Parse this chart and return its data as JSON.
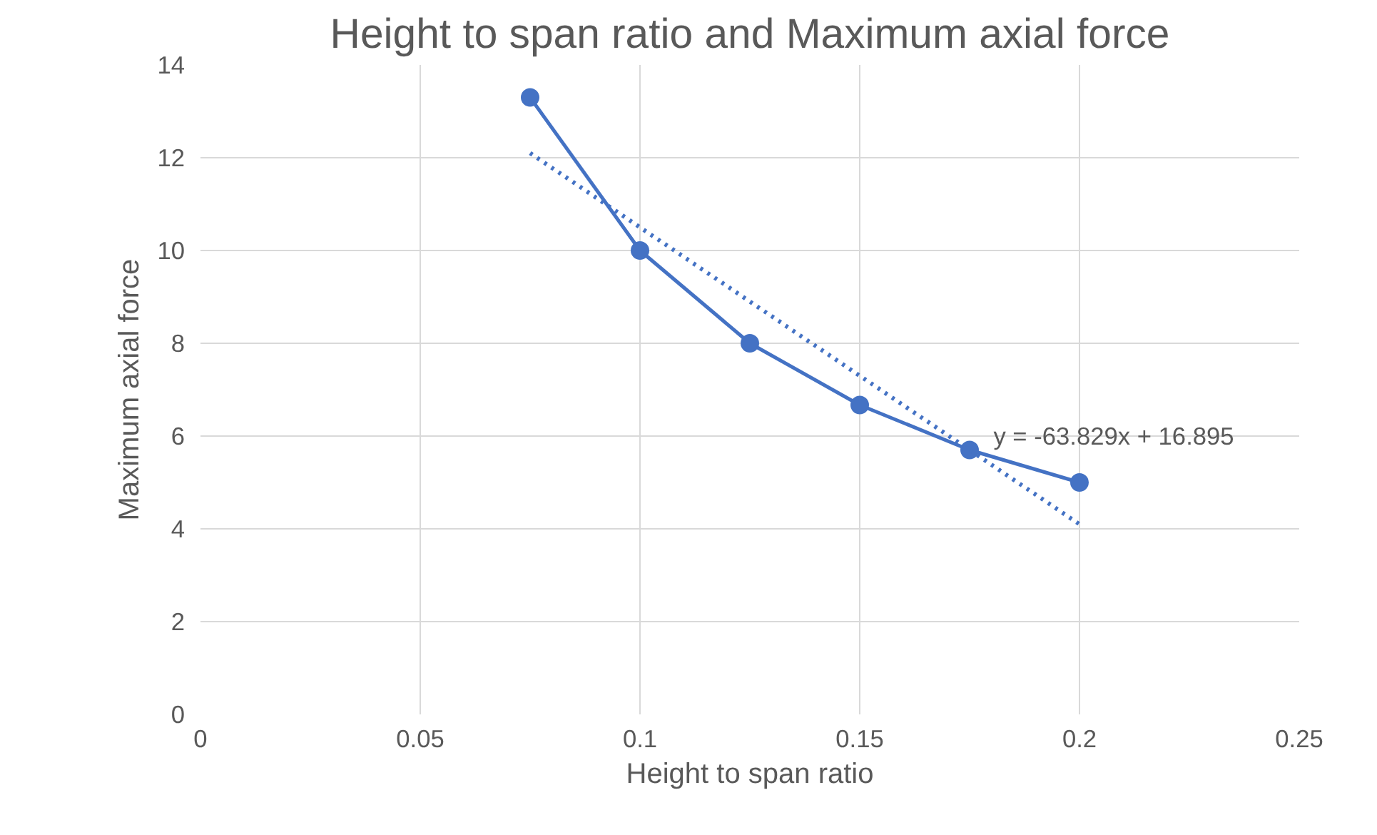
{
  "chart_data": {
    "type": "line",
    "title": "Height to span ratio and Maximum axial force",
    "xlabel": "Height to span ratio",
    "ylabel": "Maximum axial force",
    "x": [
      0.075,
      0.1,
      0.125,
      0.15,
      0.175,
      0.2
    ],
    "series": [
      {
        "color": "#4472c4",
        "values": [
          13.3,
          10,
          8,
          6.67,
          5.7,
          5
        ],
        "marker": "circle",
        "line_style": "solid"
      },
      {
        "type": "line",
        "color": "#4472c4",
        "x": [
          0.075,
          0.2
        ],
        "values": [
          12.1,
          4.1
        ],
        "marker": "none",
        "line_style": "dotted"
      }
    ],
    "annotations": [
      "y = -63.829x + 16.895"
    ],
    "xlim": [
      0,
      0.25
    ],
    "xticks": [
      0,
      0.05,
      0.1,
      0.15,
      0.2,
      0.25
    ],
    "ylim": [
      0,
      14
    ],
    "yticks": [
      0,
      2,
      4,
      6,
      8,
      10,
      12,
      14
    ],
    "grid": true
  }
}
